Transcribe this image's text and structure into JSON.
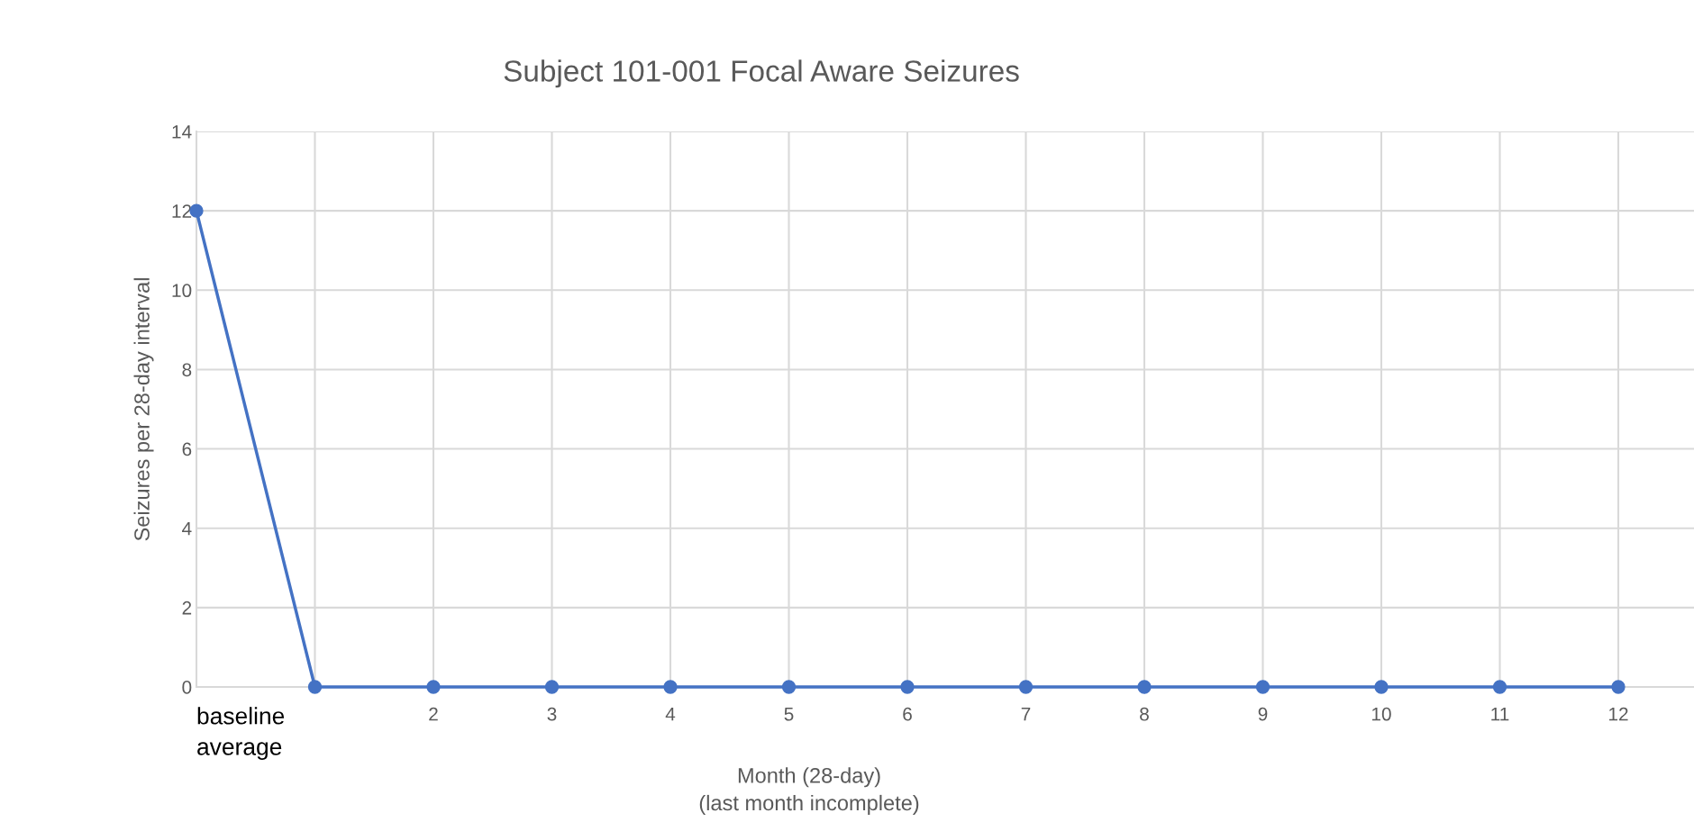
{
  "chart_data": {
    "type": "line",
    "title": "Subject 101-001 Focal Aware Seizures",
    "xlabel": "Month (28-day)\n(last month incomplete)",
    "ylabel": "Seizures per 28-day interval",
    "categories": [
      "baseline\naverage",
      null,
      "2",
      "3",
      "4",
      "5",
      "6",
      "7",
      "8",
      "9",
      "10",
      "11",
      "12"
    ],
    "series": [
      {
        "color": "#4472c4",
        "values": [
          12,
          0,
          0,
          0,
          0,
          0,
          0,
          0,
          0,
          0,
          0,
          0,
          0
        ]
      }
    ],
    "ylim": [
      0,
      14
    ],
    "yticks": [
      0,
      2,
      4,
      6,
      8,
      10,
      12,
      14
    ],
    "grid": true,
    "marker": "circle",
    "line_style": "solid"
  }
}
